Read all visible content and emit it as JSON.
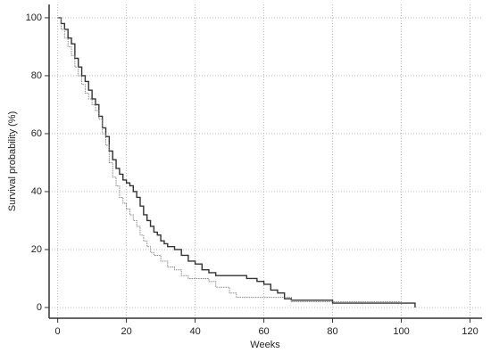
{
  "chart_data": {
    "type": "line",
    "step": "post",
    "xlabel": "Weeks",
    "ylabel": "Survival probability (%)",
    "xlim": [
      -2.5,
      123.5
    ],
    "ylim": [
      -3.7,
      104.6
    ],
    "xticks": [
      0,
      20,
      40,
      60,
      80,
      100,
      120
    ],
    "yticks": [
      0,
      20,
      40,
      60,
      80,
      100
    ],
    "grid": true,
    "series": [
      {
        "color": "#333333",
        "line_style": "solid",
        "x": [
          0,
          1,
          2,
          3,
          4,
          5,
          6,
          7,
          8,
          9,
          10,
          11,
          12,
          13,
          14,
          15,
          16,
          17,
          18,
          19,
          20,
          21,
          22,
          23,
          24,
          25,
          26,
          27,
          28,
          29,
          30,
          31,
          32,
          34,
          36,
          38,
          40,
          42,
          44,
          46,
          55,
          58,
          60,
          62,
          64,
          66,
          68,
          80,
          104
        ],
        "values": [
          100,
          98,
          96,
          93,
          91,
          86,
          83,
          80,
          78,
          75,
          72,
          70,
          66,
          62,
          59,
          54,
          51,
          48,
          46,
          44,
          43,
          42,
          40,
          38,
          35,
          32,
          30,
          28,
          26,
          25,
          23,
          22,
          21,
          20,
          18,
          16,
          15,
          13,
          12,
          11,
          10,
          9,
          8,
          6,
          5,
          3,
          2.5,
          1.5,
          0
        ]
      },
      {
        "color": "#888888",
        "line_style": "dotted",
        "x": [
          0,
          1,
          2,
          3,
          4,
          5,
          6,
          7,
          8,
          9,
          10,
          11,
          12,
          13,
          14,
          15,
          16,
          17,
          18,
          19,
          20,
          21,
          22,
          23,
          24,
          25,
          26,
          27,
          28,
          30,
          32,
          34,
          36,
          38,
          44,
          46,
          50,
          52,
          60,
          68,
          100
        ],
        "values": [
          100,
          96,
          93,
          90,
          87,
          83,
          80,
          77,
          74,
          72,
          70,
          68,
          65,
          60,
          56,
          50,
          45,
          42,
          38,
          36,
          34,
          32,
          30,
          28,
          25,
          23,
          21,
          19,
          18,
          16,
          14,
          13,
          11,
          10,
          9,
          7,
          5,
          3.5,
          3.5,
          2,
          2
        ]
      }
    ]
  }
}
